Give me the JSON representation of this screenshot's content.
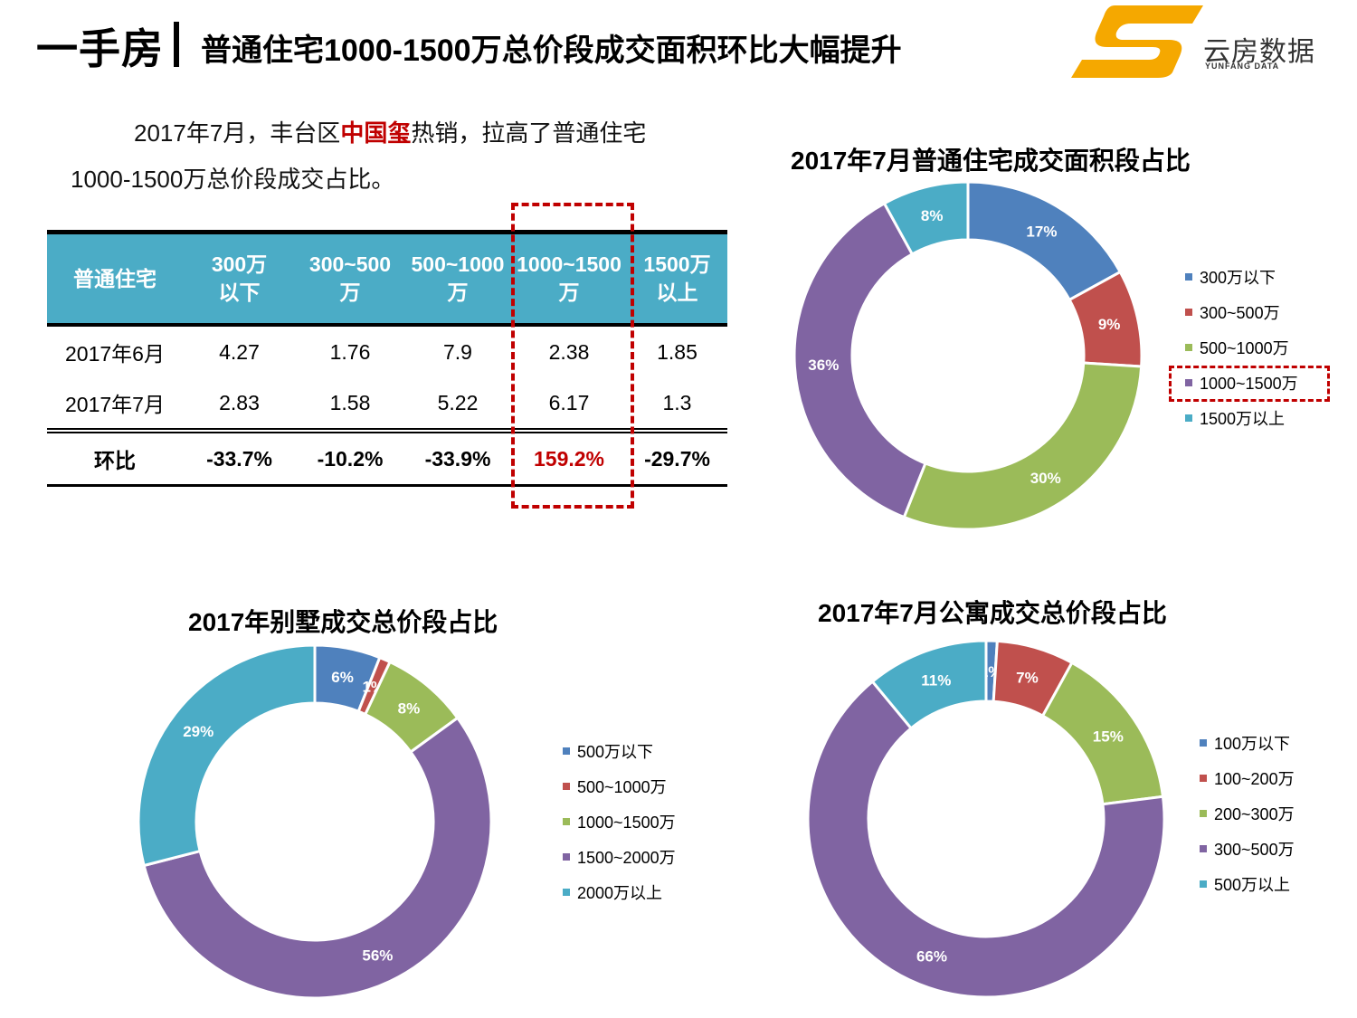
{
  "header": {
    "title": "一手房",
    "subtitle": "普通住宅1000-1500万总价段成交面积环比大幅提升",
    "logo_text": "云房数据",
    "logo_sub": "YUNFANG DATA",
    "logo_color": "#f5a800"
  },
  "paragraph": {
    "pre": "2017年7月，丰台区",
    "highlight": "中国玺",
    "post": "热销，拉高了普通住宅1000-1500万总价段成交占比。"
  },
  "table": {
    "header_color": "#4bacc6",
    "columns": [
      {
        "l1": "普通住宅",
        "l2": ""
      },
      {
        "l1": "300万",
        "l2": "以下"
      },
      {
        "l1": "300~500",
        "l2": "万"
      },
      {
        "l1": "500~1000",
        "l2": "万"
      },
      {
        "l1": "1000~1500",
        "l2": "万"
      },
      {
        "l1": "1500万",
        "l2": "以上"
      }
    ],
    "rows": [
      [
        "2017年6月",
        "4.27",
        "1.76",
        "7.9",
        "2.38",
        "1.85"
      ],
      [
        "2017年7月",
        "2.83",
        "1.58",
        "5.22",
        "6.17",
        "1.3"
      ],
      [
        "环比",
        "-33.7%",
        "-10.2%",
        "-33.9%",
        "159.2%",
        "-29.7%"
      ]
    ]
  },
  "chart_data": [
    {
      "type": "pie",
      "title": "2017年7月普通住宅成交面积段占比",
      "categories": [
        "300万以下",
        "300~500万",
        "500~1000万",
        "1000~1500万",
        "1500万以上"
      ],
      "values": [
        17,
        9,
        30,
        36,
        8
      ],
      "labels": [
        "17%",
        "9%",
        "30%",
        "36%",
        "8%"
      ],
      "colors": [
        "#4f81bd",
        "#c0504d",
        "#9bbb59",
        "#8064a2",
        "#4bacc6"
      ],
      "highlight_legend": "1000~1500万"
    },
    {
      "type": "pie",
      "title": "2017年别墅成交总价段占比",
      "categories": [
        "500万以下",
        "500~1000万",
        "1000~1500万",
        "1500~2000万",
        "2000万以上"
      ],
      "values": [
        6,
        1,
        8,
        56,
        29
      ],
      "labels": [
        "6%",
        "1%",
        "8%",
        "56%",
        "29%"
      ],
      "colors": [
        "#4f81bd",
        "#c0504d",
        "#9bbb59",
        "#8064a2",
        "#4bacc6"
      ]
    },
    {
      "type": "pie",
      "title": "2017年7月公寓成交总价段占比",
      "categories": [
        "100万以下",
        "100~200万",
        "200~300万",
        "300~500万",
        "500万以上"
      ],
      "values": [
        1,
        7,
        15,
        66,
        11
      ],
      "labels": [
        "1%",
        "7%",
        "15%",
        "66%",
        "11%"
      ],
      "colors": [
        "#4f81bd",
        "#c0504d",
        "#9bbb59",
        "#8064a2",
        "#4bacc6"
      ]
    }
  ]
}
